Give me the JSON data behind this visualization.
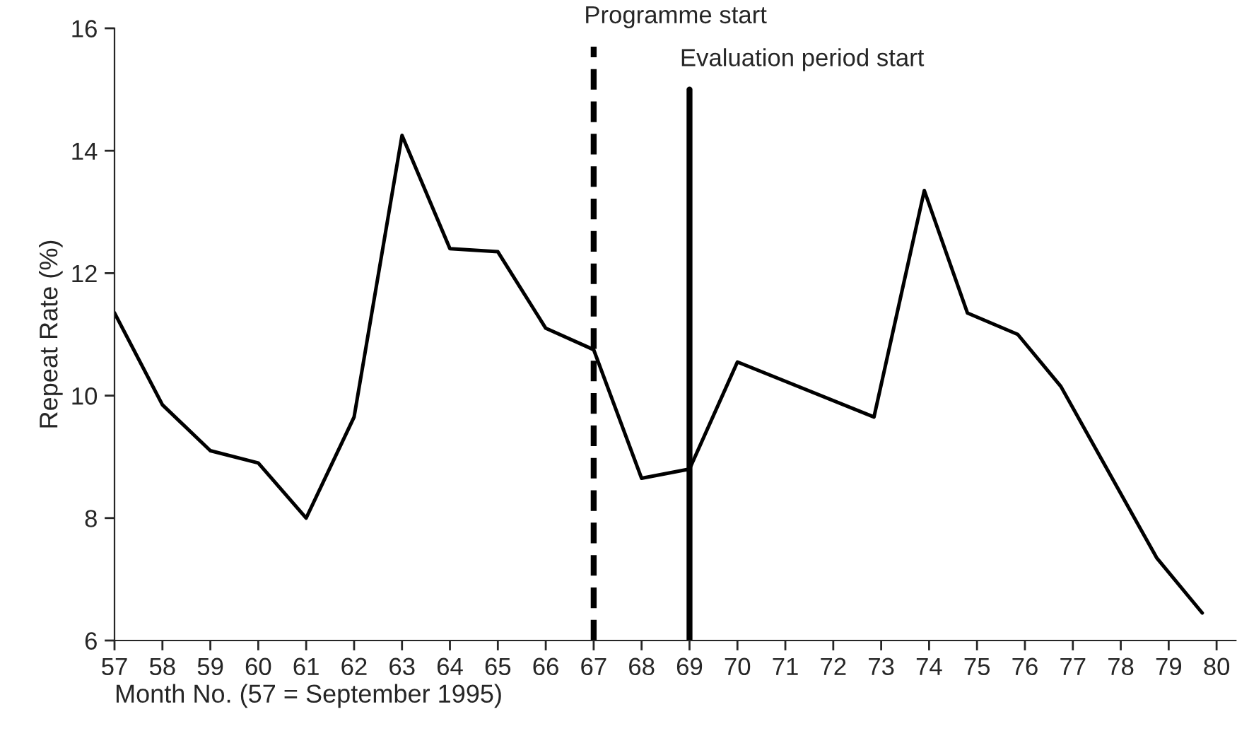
{
  "chart_data": {
    "type": "line",
    "xlabel": "Month No. (57 = September 1995)",
    "ylabel": "Repeat Rate (%)",
    "series": [
      {
        "color": "#000000",
        "x": [
          57,
          58,
          59,
          60,
          61,
          62,
          63,
          64,
          65,
          66,
          67,
          68,
          69,
          70,
          72.85,
          73.9,
          74.8,
          75.85,
          76.75,
          78.75,
          79.7
        ],
        "values": [
          11.35,
          9.85,
          9.1,
          8.9,
          8.0,
          9.65,
          14.25,
          12.4,
          12.35,
          11.1,
          10.75,
          8.65,
          8.8,
          10.55,
          9.65,
          13.35,
          11.35,
          11.0,
          10.15,
          7.35,
          6.45
        ]
      }
    ],
    "xlim": [
      57,
      80.4
    ],
    "xticks": [
      57,
      58,
      59,
      60,
      61,
      62,
      63,
      64,
      65,
      66,
      67,
      68,
      69,
      70,
      71,
      72,
      73,
      74,
      75,
      76,
      77,
      78,
      79,
      80
    ],
    "ylim": [
      6,
      16
    ],
    "yticks": [
      6,
      8,
      10,
      12,
      14,
      16
    ],
    "ref_lines": [
      {
        "axis": "x",
        "value": 67,
        "label": "Programme start",
        "color": "#000000",
        "line_style": "dashed"
      },
      {
        "axis": "x",
        "value": 69,
        "label": "Evaluation period start",
        "color": "#000000",
        "line_style": "solid"
      }
    ],
    "grid": false,
    "legend": false,
    "marker": "none",
    "line_style": "solid"
  }
}
